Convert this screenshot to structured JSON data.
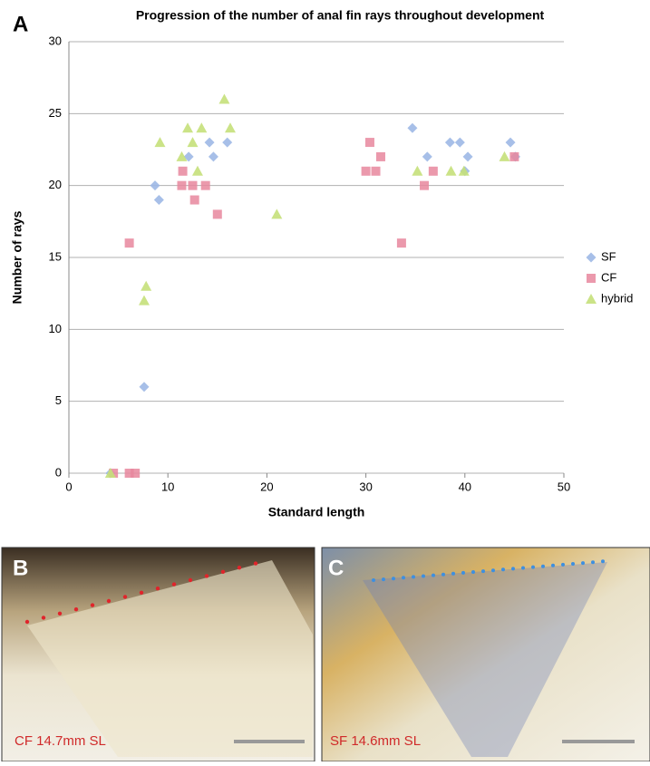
{
  "chart_data": {
    "type": "scatter",
    "title": "Progression of the number of anal fin rays throughout development",
    "x_label": "Standard length",
    "y_label": "Number of rays",
    "xlim": [
      0,
      50
    ],
    "xticks": [
      0,
      10,
      20,
      30,
      40,
      50
    ],
    "ylim": [
      0,
      30
    ],
    "yticks": [
      0,
      5,
      10,
      15,
      20,
      25,
      30
    ],
    "grid": true,
    "legend": "right",
    "series": [
      {
        "name": "SF",
        "color": "#9db8e6",
        "marker": "diamond",
        "x": [
          4.2,
          7.6,
          8.7,
          9.1,
          12.1,
          14.2,
          14.6,
          16.0,
          34.7,
          36.2,
          38.5,
          39.5,
          40.3,
          40.0,
          44.6,
          45.1
        ],
        "values": [
          0,
          6,
          20,
          19,
          22,
          23,
          22,
          23,
          24,
          22,
          23,
          23,
          22,
          21,
          23,
          22
        ]
      },
      {
        "name": "CF",
        "color": "#e8879e",
        "marker": "square",
        "x": [
          4.5,
          6.1,
          6.7,
          6.1,
          11.5,
          11.4,
          12.5,
          13.8,
          12.7,
          15.0,
          30.0,
          30.4,
          31.0,
          31.5,
          33.6,
          35.9,
          36.8,
          45.0
        ],
        "values": [
          0,
          0,
          0,
          16,
          21,
          20,
          20,
          20,
          19,
          18,
          21,
          23,
          21,
          22,
          16,
          20,
          21,
          22
        ]
      },
      {
        "name": "hybrid",
        "color": "#c5e07a",
        "marker": "triangle",
        "x": [
          4.2,
          7.6,
          7.8,
          9.2,
          11.4,
          12.0,
          12.5,
          13.0,
          13.4,
          15.7,
          16.3,
          21.0,
          35.2,
          38.6,
          39.9,
          44.0
        ],
        "values": [
          0,
          12,
          13,
          23,
          22,
          24,
          23,
          21,
          24,
          26,
          24,
          18,
          21,
          21,
          21,
          22
        ]
      }
    ]
  },
  "panels": {
    "a": "A",
    "b": "B",
    "c": "C",
    "b_caption": "CF 14.7mm SL",
    "c_caption": "SF 14.6mm SL"
  }
}
